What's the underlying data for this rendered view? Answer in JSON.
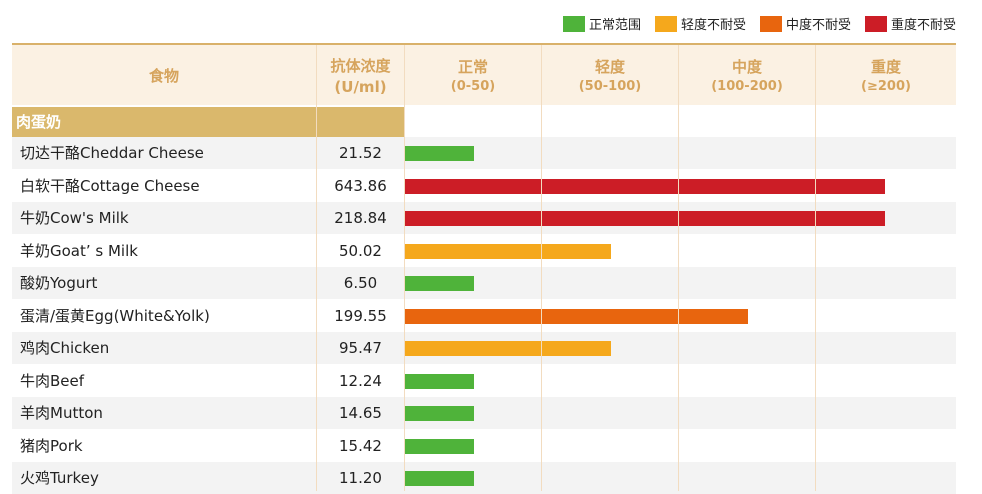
{
  "legend": [
    {
      "label": "正常范围",
      "color": "#4fb33a"
    },
    {
      "label": "轻度不耐受",
      "color": "#f5a81c"
    },
    {
      "label": "中度不耐受",
      "color": "#e8650e"
    },
    {
      "label": "重度不耐受",
      "color": "#cc1d26"
    }
  ],
  "headers": {
    "food": "食物",
    "conc": "抗体浓度",
    "conc_unit": "(U/ml)",
    "cols": [
      {
        "label": "正常",
        "range": "(0-50)"
      },
      {
        "label": "轻度",
        "range": "(50-100)"
      },
      {
        "label": "中度",
        "range": "(100-200)"
      },
      {
        "label": "重度",
        "range": "(≥200)"
      }
    ]
  },
  "section": "肉蛋奶",
  "chart_data": {
    "type": "bar",
    "categories": [
      "切达干酪Cheddar Cheese",
      "白软干酪Cottage Cheese",
      "牛奶Cow's Milk",
      "羊奶Goat’ s Milk",
      "酸奶Yogurt",
      "蛋清/蛋黄Egg(White&Yolk)",
      "鸡肉Chicken",
      "牛肉Beef",
      "羊肉Mutton",
      "猪肉Pork",
      "火鸡Turkey"
    ],
    "values": [
      21.52,
      643.86,
      218.84,
      50.02,
      6.5,
      199.55,
      95.47,
      12.24,
      14.65,
      15.42,
      11.2
    ],
    "value_labels": [
      "21.52",
      "643.86",
      "218.84",
      "50.02",
      "6.50",
      "199.55",
      "95.47",
      "12.24",
      "14.65",
      "15.42",
      "11.20"
    ],
    "bar_levels": [
      0.5,
      3.5,
      3.5,
      1.5,
      0.5,
      2.5,
      1.5,
      0.5,
      0.5,
      0.5,
      0.5
    ],
    "bar_colors": [
      "#4fb33a",
      "#cc1d26",
      "#cc1d26",
      "#f5a81c",
      "#4fb33a",
      "#e8650e",
      "#f5a81c",
      "#4fb33a",
      "#4fb33a",
      "#4fb33a",
      "#4fb33a"
    ],
    "scale_bands": [
      "0-50",
      "50-100",
      "100-200",
      "≥200"
    ]
  }
}
